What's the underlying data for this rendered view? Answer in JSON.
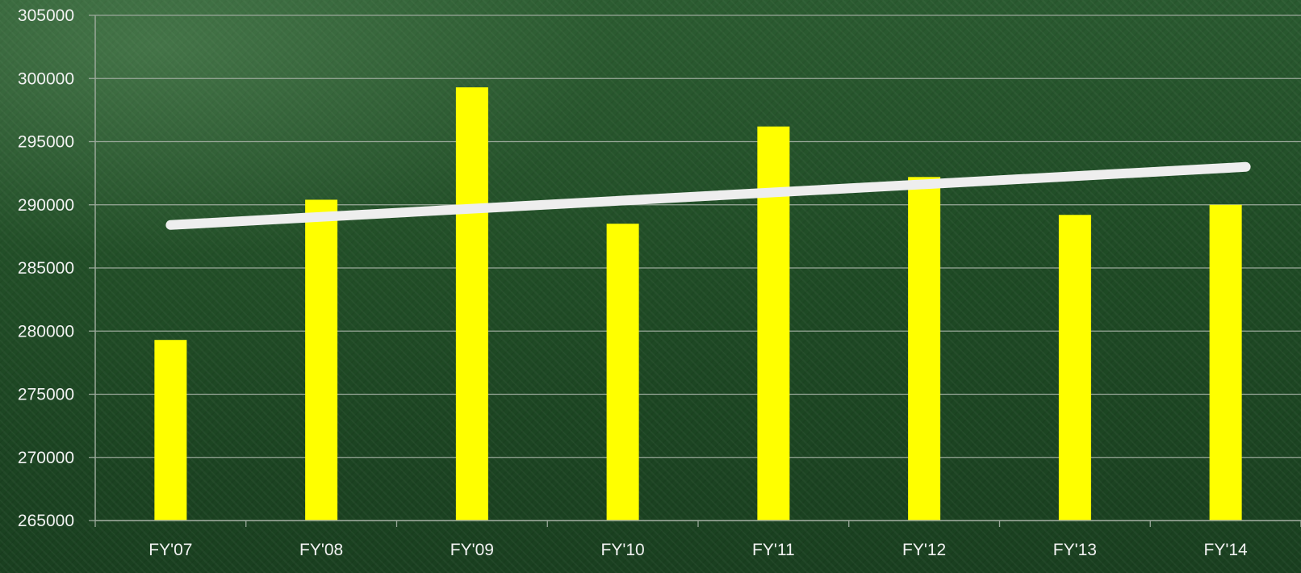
{
  "chart_data": {
    "type": "bar",
    "title": "",
    "xlabel": "",
    "ylabel": "",
    "categories": [
      "FY'07",
      "FY'08",
      "FY'09",
      "FY'10",
      "FY'11",
      "FY'12",
      "FY'13",
      "FY'14"
    ],
    "values": [
      279300,
      290400,
      299300,
      288500,
      296200,
      292200,
      289200,
      290000
    ],
    "ylim": [
      265000,
      305000
    ],
    "yticks": [
      "265000",
      "270000",
      "275000",
      "280000",
      "285000",
      "290000",
      "295000",
      "300000",
      "305000"
    ],
    "trendline": {
      "type": "linear",
      "start": 288400,
      "end": 293000
    },
    "grid": true,
    "legend": "none",
    "colors": {
      "bar": "#ffff00",
      "trendline": "#eeeeee",
      "gridline": "#9aa89a",
      "text": "#f2f2f2",
      "background": "#1f4b25"
    }
  }
}
